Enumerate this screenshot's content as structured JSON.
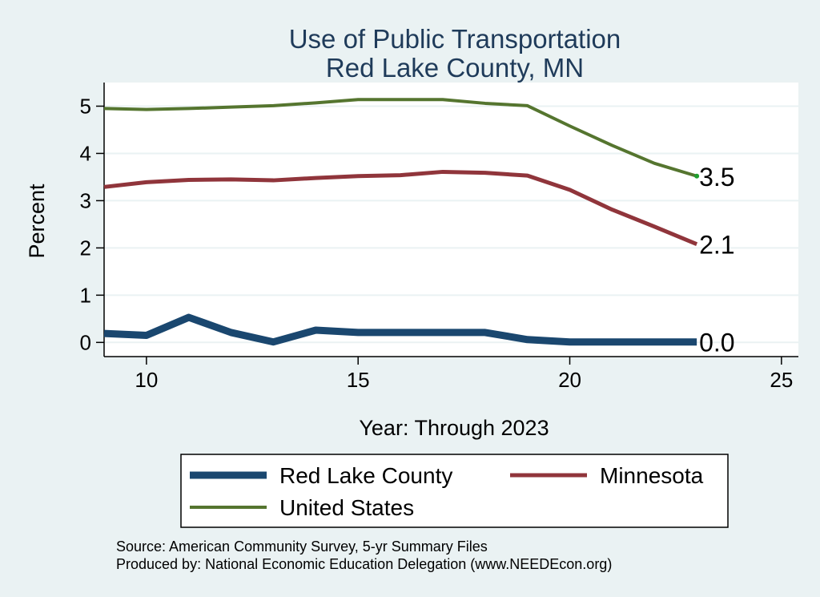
{
  "chart_data": {
    "type": "line",
    "title": "Use of Public Transportation",
    "subtitle": "Red Lake County, MN",
    "xlabel": "Year: Through 2023",
    "ylabel": "Percent",
    "xlim": [
      9,
      25.4
    ],
    "ylim": [
      -0.3,
      5.5
    ],
    "xticks": [
      10,
      15,
      20,
      25
    ],
    "yticks": [
      0,
      1,
      2,
      3,
      4,
      5
    ],
    "grid": true,
    "legend_position": "bottom",
    "x": [
      9,
      10,
      11,
      12,
      13,
      14,
      15,
      16,
      17,
      18,
      19,
      20,
      21,
      22,
      23
    ],
    "series": [
      {
        "name": "Red Lake County",
        "color": "#1a476f",
        "values": [
          0.19,
          0.15,
          0.53,
          0.21,
          0.01,
          0.26,
          0.21,
          0.21,
          0.21,
          0.21,
          0.06,
          0.01,
          0.01,
          0.01,
          0.01
        ],
        "end_label": "0.0"
      },
      {
        "name": "Minnesota",
        "color": "#90353b",
        "values": [
          3.29,
          3.39,
          3.44,
          3.45,
          3.43,
          3.48,
          3.52,
          3.54,
          3.61,
          3.59,
          3.53,
          3.23,
          2.81,
          2.45,
          2.08
        ],
        "end_label": "2.1"
      },
      {
        "name": "United States",
        "color": "#55752f",
        "values": [
          4.95,
          4.93,
          4.95,
          4.98,
          5.01,
          5.07,
          5.14,
          5.14,
          5.14,
          5.06,
          5.01,
          4.58,
          4.17,
          3.79,
          3.52
        ],
        "end_label": "3.5"
      }
    ]
  },
  "footer": {
    "source": "Source: American Community Survey, 5-yr Summary Files",
    "produced": "Produced by: National Economic Education Delegation (www.NEEDEcon.org)"
  }
}
